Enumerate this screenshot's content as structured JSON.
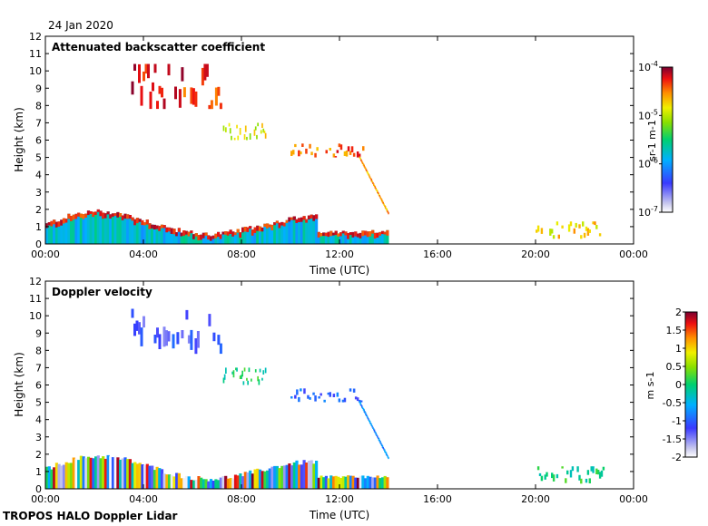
{
  "date_label": "24 Jan 2020",
  "footer": "TROPOS HALO Doppler Lidar",
  "chart_data": [
    {
      "type": "heatmap",
      "title": "Attenuated backscatter coefficient",
      "xlabel": "Time (UTC)",
      "ylabel": "Height (km)",
      "xlim": [
        0,
        24
      ],
      "ylim": [
        0,
        12
      ],
      "xticks": [
        "00:00",
        "04:00",
        "08:00",
        "12:00",
        "16:00",
        "20:00",
        "00:00"
      ],
      "yticks": [
        "0",
        "1",
        "2",
        "3",
        "4",
        "5",
        "6",
        "7",
        "8",
        "9",
        "10",
        "11",
        "12"
      ],
      "colorbar": {
        "label": "sr-1 m-1",
        "scale": "log",
        "range": [
          1e-07,
          0.0001
        ],
        "tick_labels": [
          {
            "base": "10",
            "exp": "-4",
            "v": 0.0001
          },
          {
            "base": "10",
            "exp": "-5",
            "v": 1e-05
          },
          {
            "base": "10",
            "exp": "-6",
            "v": 1e-06
          },
          {
            "base": "10",
            "exp": "-7",
            "v": 1e-07
          }
        ]
      },
      "features": [
        {
          "name": "boundary layer aerosol",
          "x": [
            0,
            14
          ],
          "height_km": [
            0,
            1.8
          ],
          "level": 0.4
        },
        {
          "name": "cirrus fragments",
          "x": [
            3.5,
            7.2
          ],
          "height_km": [
            7.8,
            10.4
          ],
          "level": 0.9
        },
        {
          "name": "descending cloud band",
          "x": [
            7.2,
            9.0
          ],
          "height_km": [
            6.0,
            7.0
          ],
          "level": 0.7
        },
        {
          "name": "mid-level cloud",
          "x": [
            10,
            13
          ],
          "height_km": [
            5.0,
            5.8
          ],
          "level": 0.85
        },
        {
          "name": "falling cloud base",
          "x": [
            12.8,
            14
          ],
          "height_km": [
            1.5,
            5.2
          ],
          "level": 0.8
        },
        {
          "name": "evening low cloud",
          "x": [
            20,
            22.8
          ],
          "height_km": [
            0.3,
            1.3
          ],
          "level": 0.75
        }
      ]
    },
    {
      "type": "heatmap",
      "title": "Doppler velocity",
      "xlabel": "Time (UTC)",
      "ylabel": "Height (km)",
      "xlim": [
        0,
        24
      ],
      "ylim": [
        0,
        12
      ],
      "xticks": [
        "00:00",
        "04:00",
        "08:00",
        "12:00",
        "16:00",
        "20:00",
        "00:00"
      ],
      "yticks": [
        "0",
        "1",
        "2",
        "3",
        "4",
        "5",
        "6",
        "7",
        "8",
        "9",
        "10",
        "11",
        "12"
      ],
      "colorbar": {
        "label": "m s-1",
        "scale": "linear",
        "range": [
          -2,
          2
        ],
        "tick_labels": [
          {
            "t": "2",
            "v": 2
          },
          {
            "t": "1.5",
            "v": 1.5
          },
          {
            "t": "1",
            "v": 1
          },
          {
            "t": "0.5",
            "v": 0.5
          },
          {
            "t": "0",
            "v": 0
          },
          {
            "t": "-0.5",
            "v": -0.5
          },
          {
            "t": "-1",
            "v": -1
          },
          {
            "t": "-1.5",
            "v": -1.5
          },
          {
            "t": "-2",
            "v": -2
          }
        ]
      },
      "features": [
        {
          "name": "boundary layer turbulence",
          "x": [
            0,
            14
          ],
          "height_km": [
            0,
            2.0
          ],
          "velocity": [
            -2,
            2
          ]
        },
        {
          "name": "cirrus fragments",
          "x": [
            3.5,
            7.2
          ],
          "height_km": [
            7.8,
            10.4
          ],
          "velocity": -1.2
        },
        {
          "name": "descending cloud band",
          "x": [
            7.2,
            9.0
          ],
          "height_km": [
            6.0,
            7.0
          ],
          "velocity": 0.0
        },
        {
          "name": "mid-level cloud",
          "x": [
            10,
            13
          ],
          "height_km": [
            5.0,
            5.8
          ],
          "velocity": -1.0
        },
        {
          "name": "falling cloud base",
          "x": [
            12.8,
            14
          ],
          "height_km": [
            1.5,
            5.2
          ],
          "velocity": -0.8
        },
        {
          "name": "evening low cloud",
          "x": [
            20,
            22.8
          ],
          "height_km": [
            0.3,
            1.3
          ],
          "velocity": 0.0
        }
      ]
    }
  ]
}
